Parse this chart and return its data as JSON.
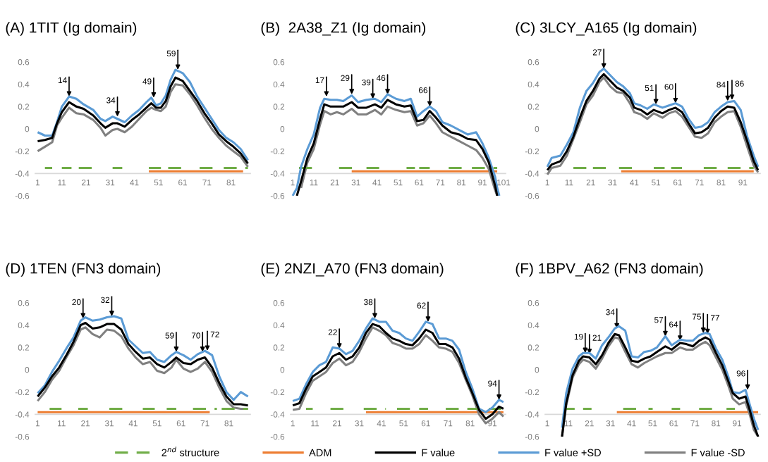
{
  "chart_data": [
    {
      "type": "line",
      "title": "(A) 1TIT (Ig domain)",
      "xlim": [
        0,
        89
      ],
      "xticks": [
        1,
        11,
        21,
        31,
        41,
        51,
        61,
        71,
        81
      ],
      "ylim": [
        -0.6,
        0.6
      ],
      "yticks": [
        -0.6,
        -0.4,
        -0.2,
        0,
        0.2,
        0.4,
        0.6
      ],
      "grid": false,
      "x": [
        1,
        4,
        7,
        9,
        11,
        14,
        17,
        20,
        24,
        27,
        29,
        32,
        34,
        37,
        40,
        43,
        46,
        48,
        50,
        52,
        54,
        56,
        58,
        61,
        64,
        67,
        70,
        73,
        76,
        79,
        82,
        85,
        88
      ],
      "series": [
        {
          "color": "#70ad47",
          "line_style": "dashed",
          "x": [
            4,
            7,
            9,
            11,
            15,
            16,
            18,
            25,
            28,
            32,
            36,
            41,
            47,
            52,
            53,
            55,
            61,
            64,
            68,
            75,
            76,
            78,
            88
          ],
          "values": [
            -0.35,
            -0.35,
            null,
            -0.35,
            -0.35,
            null,
            -0.35,
            -0.35,
            null,
            -0.35,
            -0.35,
            null,
            -0.35,
            -0.35,
            null,
            -0.35,
            -0.35,
            null,
            -0.35,
            -0.35,
            null,
            -0.35,
            -0.35
          ]
        },
        {
          "color": "#ed7d31",
          "x": [
            47,
            86
          ],
          "values": [
            -0.38,
            -0.38
          ]
        },
        {
          "color": "#000000",
          "values": [
            -0.11,
            -0.1,
            -0.08,
            0.05,
            0.15,
            0.24,
            0.2,
            0.18,
            0.12,
            0.05,
            0.01,
            0.05,
            0.05,
            0.02,
            0.08,
            0.13,
            0.19,
            0.23,
            0.19,
            0.19,
            0.25,
            0.38,
            0.46,
            0.43,
            0.34,
            0.25,
            0.14,
            0.05,
            -0.05,
            -0.11,
            -0.16,
            -0.22,
            -0.31
          ]
        },
        {
          "color": "#5b9bd5",
          "values": [
            -0.03,
            -0.06,
            -0.06,
            0.06,
            0.2,
            0.29,
            0.27,
            0.22,
            0.17,
            0.09,
            0.07,
            0.11,
            0.09,
            0.06,
            0.12,
            0.17,
            0.24,
            0.28,
            0.21,
            0.23,
            0.3,
            0.44,
            0.53,
            0.5,
            0.42,
            0.29,
            0.19,
            0.09,
            -0.01,
            -0.08,
            -0.12,
            -0.18,
            -0.28
          ]
        },
        {
          "color": "#808080",
          "values": [
            -0.2,
            -0.16,
            -0.12,
            0.03,
            0.1,
            0.19,
            0.14,
            0.13,
            0.08,
            0.01,
            -0.06,
            -0.01,
            0.0,
            -0.03,
            0.02,
            0.09,
            0.16,
            0.19,
            0.17,
            0.16,
            0.2,
            0.33,
            0.4,
            0.39,
            0.31,
            0.21,
            0.1,
            0.0,
            -0.08,
            -0.15,
            -0.2,
            -0.25,
            -0.34
          ]
        }
      ],
      "annotations": [
        {
          "text": "14",
          "x": 14,
          "y": 0.29
        },
        {
          "text": "34",
          "x": 34,
          "y": 0.11
        },
        {
          "text": "49",
          "x": 49,
          "y": 0.28
        },
        {
          "text": "59",
          "x": 59,
          "y": 0.53
        }
      ]
    },
    {
      "type": "line",
      "title": "(B)  2A38_Z1 (Ig domain)",
      "xlim": [
        0,
        102
      ],
      "xticks": [
        1,
        11,
        21,
        31,
        41,
        51,
        61,
        71,
        81,
        91,
        101
      ],
      "ylim": [
        -0.6,
        0.6
      ],
      "yticks": [
        -0.6,
        -0.4,
        -0.2,
        0,
        0.2,
        0.4,
        0.6
      ],
      "grid": false,
      "x": [
        1,
        3,
        5,
        8,
        11,
        14,
        16,
        19,
        22,
        25,
        29,
        32,
        36,
        40,
        43,
        46,
        50,
        54,
        57,
        60,
        63,
        66,
        69,
        72,
        76,
        80,
        84,
        88,
        91,
        94,
        97,
        98,
        99
      ],
      "series": [
        {
          "color": "#70ad47",
          "line_style": "dashed",
          "x": [
            4,
            11,
            17,
            23,
            33,
            34,
            36,
            42,
            48,
            55,
            59,
            60,
            61,
            66,
            70,
            75,
            83,
            84,
            86,
            98
          ],
          "values": [
            -0.35,
            -0.35,
            null,
            -0.35,
            -0.35,
            null,
            -0.35,
            -0.35,
            null,
            -0.35,
            -0.35,
            null,
            -0.35,
            -0.35,
            null,
            -0.35,
            -0.35,
            null,
            -0.35,
            -0.35
          ]
        },
        {
          "color": "#ed7d31",
          "x": [
            29,
            98
          ],
          "values": [
            -0.38,
            -0.38
          ]
        },
        {
          "color": "#000000",
          "values": [
            null,
            -0.6,
            -0.47,
            -0.26,
            -0.13,
            0.09,
            0.22,
            0.2,
            0.2,
            0.2,
            0.24,
            0.19,
            0.19,
            0.22,
            0.19,
            0.26,
            0.22,
            0.2,
            0.21,
            0.07,
            0.08,
            0.16,
            0.1,
            0.03,
            -0.03,
            -0.05,
            -0.09,
            -0.1,
            -0.18,
            -0.3,
            -0.51,
            -0.6,
            null
          ]
        },
        {
          "color": "#5b9bd5",
          "values": [
            -0.6,
            -0.53,
            -0.34,
            -0.18,
            -0.05,
            0.19,
            0.27,
            0.26,
            0.26,
            0.25,
            0.3,
            0.24,
            0.26,
            0.27,
            0.24,
            0.31,
            0.27,
            0.25,
            0.27,
            0.11,
            0.16,
            0.2,
            0.16,
            0.06,
            0.03,
            -0.01,
            -0.05,
            -0.03,
            -0.13,
            -0.26,
            -0.43,
            -0.53,
            -0.6
          ]
        },
        {
          "color": "#808080",
          "values": [
            null,
            null,
            -0.53,
            -0.3,
            -0.18,
            0.04,
            0.16,
            0.13,
            0.15,
            0.13,
            0.18,
            0.13,
            0.13,
            0.17,
            0.13,
            0.2,
            0.17,
            0.15,
            0.16,
            0.03,
            0.05,
            0.12,
            0.05,
            -0.03,
            -0.07,
            -0.11,
            -0.15,
            -0.19,
            -0.26,
            -0.36,
            -0.55,
            -0.6,
            null
          ]
        }
      ],
      "annotations": [
        {
          "text": "17",
          "x": 17,
          "y": 0.29
        },
        {
          "text": "29",
          "x": 29,
          "y": 0.31
        },
        {
          "text": "39",
          "x": 39,
          "y": 0.27
        },
        {
          "text": "46",
          "x": 46,
          "y": 0.31
        },
        {
          "text": "66",
          "x": 66,
          "y": 0.2
        }
      ]
    },
    {
      "type": "line",
      "title": "(C) 3LCY_A165 (Ig domain)",
      "xlim": [
        0,
        99
      ],
      "xticks": [
        1,
        11,
        21,
        31,
        41,
        51,
        61,
        71,
        81,
        91
      ],
      "ylim": [
        -0.6,
        0.6
      ],
      "yticks": [
        -0.6,
        -0.4,
        -0.2,
        0,
        0.2,
        0.4,
        0.6
      ],
      "grid": false,
      "x": [
        1,
        3,
        7,
        10,
        13,
        16,
        19,
        22,
        25,
        27,
        30,
        33,
        36,
        39,
        41,
        44,
        47,
        50,
        54,
        57,
        60,
        63,
        66,
        69,
        72,
        75,
        78,
        81,
        84,
        87,
        90,
        93,
        96,
        98
      ],
      "series": [
        {
          "color": "#70ad47",
          "line_style": "dashed",
          "x": [
            13,
            20,
            21,
            22,
            29,
            31,
            34,
            40,
            45,
            50,
            55,
            56,
            58,
            63,
            68,
            73,
            80,
            82,
            84,
            96
          ],
          "values": [
            -0.35,
            -0.35,
            null,
            -0.35,
            -0.35,
            null,
            -0.35,
            -0.35,
            null,
            -0.35,
            -0.35,
            null,
            -0.35,
            -0.35,
            null,
            -0.35,
            -0.35,
            null,
            -0.35,
            -0.35
          ]
        },
        {
          "color": "#ed7d31",
          "x": [
            35,
            96
          ],
          "values": [
            -0.38,
            -0.38
          ]
        },
        {
          "color": "#000000",
          "values": [
            -0.37,
            -0.32,
            -0.29,
            -0.2,
            -0.07,
            0.1,
            0.25,
            0.34,
            0.45,
            0.49,
            0.43,
            0.37,
            0.34,
            0.28,
            0.19,
            0.17,
            0.13,
            0.17,
            0.14,
            0.17,
            0.19,
            0.15,
            0.05,
            -0.04,
            -0.03,
            0.01,
            0.1,
            0.16,
            0.2,
            0.19,
            0.06,
            -0.11,
            -0.29,
            -0.37
          ]
        },
        {
          "color": "#5b9bd5",
          "values": [
            -0.34,
            -0.26,
            -0.24,
            -0.14,
            -0.03,
            0.19,
            0.34,
            0.41,
            0.51,
            0.54,
            0.48,
            0.42,
            0.38,
            0.32,
            0.23,
            0.21,
            0.18,
            0.22,
            0.19,
            0.21,
            0.23,
            0.2,
            0.09,
            0.01,
            0.02,
            0.06,
            0.15,
            0.2,
            0.24,
            0.25,
            0.17,
            -0.07,
            -0.24,
            -0.34
          ]
        },
        {
          "color": "#808080",
          "values": [
            -0.41,
            -0.35,
            -0.33,
            -0.24,
            -0.09,
            0.06,
            0.22,
            0.3,
            0.42,
            0.46,
            0.38,
            0.33,
            0.32,
            0.23,
            0.15,
            0.13,
            0.09,
            0.14,
            0.1,
            0.14,
            0.16,
            0.11,
            0.02,
            -0.07,
            -0.08,
            -0.04,
            0.06,
            0.11,
            0.15,
            0.16,
            0.02,
            -0.16,
            -0.33,
            -0.39
          ]
        }
      ],
      "annotations": [
        {
          "text": "27",
          "x": 27,
          "y": 0.54
        },
        {
          "text": "51",
          "x": 51,
          "y": 0.22
        },
        {
          "text": "60",
          "x": 60,
          "y": 0.23
        },
        {
          "text": "84",
          "x": 84,
          "y": 0.25
        },
        {
          "text": "86",
          "x": 86,
          "y": 0.26
        }
      ]
    },
    {
      "type": "line",
      "title": "(D) 1TEN (FN3 domain)",
      "xlim": [
        0,
        90
      ],
      "xticks": [
        1,
        11,
        21,
        31,
        41,
        51,
        61,
        71,
        81
      ],
      "ylim": [
        -0.6,
        0.6
      ],
      "yticks": [
        -0.6,
        -0.4,
        -0.2,
        0,
        0.2,
        0.4,
        0.6
      ],
      "grid": false,
      "x": [
        1,
        4,
        7,
        10,
        13,
        16,
        19,
        21,
        24,
        27,
        30,
        33,
        36,
        39,
        42,
        45,
        48,
        51,
        54,
        57,
        59,
        62,
        65,
        68,
        71,
        74,
        77,
        80,
        83,
        86,
        89
      ],
      "series": [
        {
          "color": "#70ad47",
          "line_style": "dashed",
          "x": [
            6,
            11,
            14,
            18,
            22,
            26,
            31,
            39,
            42,
            45,
            50,
            52,
            55,
            59,
            62,
            66,
            76,
            77,
            78,
            89
          ],
          "values": [
            -0.35,
            -0.35,
            null,
            -0.35,
            -0.35,
            null,
            -0.35,
            -0.35,
            null,
            -0.35,
            -0.35,
            null,
            -0.35,
            -0.35,
            null,
            -0.35,
            -0.35,
            null,
            -0.35,
            -0.35
          ]
        },
        {
          "color": "#ed7d31",
          "x": [
            1,
            73
          ],
          "values": [
            -0.38,
            -0.38
          ]
        },
        {
          "color": "#000000",
          "values": [
            -0.24,
            -0.16,
            -0.06,
            0.02,
            0.13,
            0.25,
            0.4,
            0.42,
            0.37,
            0.38,
            0.41,
            0.41,
            0.36,
            0.23,
            0.16,
            0.1,
            0.11,
            0.05,
            0.02,
            0.07,
            0.11,
            0.06,
            0.05,
            0.09,
            0.11,
            0.02,
            -0.12,
            -0.24,
            -0.31,
            -0.31,
            -0.32
          ]
        },
        {
          "color": "#5b9bd5",
          "values": [
            -0.21,
            -0.14,
            -0.02,
            0.08,
            0.19,
            0.29,
            0.44,
            0.47,
            0.44,
            0.45,
            0.47,
            0.48,
            0.46,
            0.27,
            0.21,
            0.15,
            0.16,
            0.09,
            0.07,
            0.13,
            0.16,
            0.13,
            0.09,
            0.14,
            0.17,
            0.13,
            -0.06,
            -0.2,
            -0.27,
            -0.2,
            -0.24
          ]
        },
        {
          "color": "#808080",
          "values": [
            -0.28,
            -0.2,
            -0.09,
            -0.01,
            0.11,
            0.22,
            0.36,
            0.38,
            0.32,
            0.29,
            0.36,
            0.35,
            0.3,
            0.19,
            0.11,
            0.05,
            0.07,
            -0.01,
            -0.03,
            0.02,
            0.09,
            0.01,
            -0.02,
            0.01,
            0.07,
            -0.02,
            -0.16,
            -0.28,
            -0.34,
            -0.35,
            -0.35
          ]
        }
      ],
      "annotations": [
        {
          "text": "20",
          "x": 20,
          "y": 0.46
        },
        {
          "text": "32",
          "x": 32,
          "y": 0.48
        },
        {
          "text": "59",
          "x": 59,
          "y": 0.16
        },
        {
          "text": "70",
          "x": 70,
          "y": 0.16
        },
        {
          "text": "72",
          "x": 72,
          "y": 0.17
        }
      ]
    },
    {
      "type": "line",
      "title": "(E) 2NZI_A70 (FN3 domain)",
      "xlim": [
        0,
        97
      ],
      "xticks": [
        1,
        11,
        21,
        31,
        41,
        51,
        61,
        71,
        81,
        91
      ],
      "ylim": [
        -0.6,
        0.6
      ],
      "yticks": [
        -0.6,
        -0.4,
        -0.2,
        0,
        0.2,
        0.4,
        0.6
      ],
      "grid": false,
      "x": [
        1,
        4,
        7,
        10,
        13,
        16,
        19,
        22,
        25,
        28,
        31,
        34,
        37,
        40,
        43,
        46,
        49,
        52,
        55,
        58,
        61,
        64,
        67,
        70,
        73,
        76,
        79,
        82,
        85,
        88,
        91,
        94,
        96
      ],
      "series": [
        {
          "color": "#70ad47",
          "line_style": "dashed",
          "x": [
            7,
            10,
            14,
            18,
            24,
            28,
            33,
            43,
            45,
            48,
            54,
            56,
            58,
            62,
            66,
            70,
            95
          ],
          "values": [
            -0.35,
            -0.35,
            null,
            -0.35,
            -0.35,
            null,
            -0.35,
            -0.35,
            null,
            -0.35,
            -0.35,
            null,
            -0.35,
            -0.35,
            null,
            -0.35,
            -0.35
          ]
        },
        {
          "color": "#ed7d31",
          "x": [
            34,
            96
          ],
          "values": [
            -0.38,
            -0.38
          ]
        },
        {
          "color": "#000000",
          "values": [
            -0.32,
            -0.3,
            -0.17,
            -0.06,
            -0.02,
            0.02,
            0.12,
            0.15,
            0.09,
            0.12,
            0.2,
            0.33,
            0.41,
            0.39,
            0.33,
            0.28,
            0.26,
            0.23,
            0.22,
            0.28,
            0.36,
            0.33,
            0.23,
            0.23,
            0.2,
            0.1,
            -0.07,
            -0.21,
            -0.36,
            -0.44,
            -0.4,
            -0.33,
            -0.35
          ]
        },
        {
          "color": "#5b9bd5",
          "values": [
            -0.28,
            -0.26,
            -0.13,
            -0.02,
            0.04,
            0.07,
            0.2,
            0.19,
            0.14,
            0.17,
            0.26,
            0.37,
            0.46,
            0.43,
            0.43,
            0.35,
            0.33,
            0.28,
            0.26,
            0.34,
            0.43,
            0.41,
            0.28,
            0.28,
            0.26,
            0.18,
            -0.02,
            -0.17,
            -0.35,
            -0.38,
            -0.34,
            -0.27,
            -0.29
          ]
        },
        {
          "color": "#808080",
          "values": [
            -0.36,
            -0.35,
            -0.21,
            -0.1,
            -0.06,
            -0.02,
            0.06,
            0.1,
            0.04,
            0.07,
            0.16,
            0.28,
            0.38,
            0.35,
            0.31,
            0.24,
            0.22,
            0.19,
            0.19,
            0.23,
            0.31,
            0.26,
            0.2,
            0.19,
            0.16,
            0.06,
            -0.09,
            -0.23,
            -0.4,
            -0.48,
            -0.44,
            -0.38,
            -0.42
          ]
        }
      ],
      "annotations": [
        {
          "text": "22",
          "x": 22,
          "y": 0.19
        },
        {
          "text": "38",
          "x": 38,
          "y": 0.46
        },
        {
          "text": "62",
          "x": 62,
          "y": 0.43
        },
        {
          "text": "94",
          "x": 94,
          "y": -0.27
        }
      ]
    },
    {
      "type": "line",
      "title": "(F) 1BPV_A62 (FN3 domain)",
      "xlim": [
        0,
        102
      ],
      "xticks": [
        1,
        11,
        21,
        31,
        41,
        51,
        61,
        71,
        81,
        91
      ],
      "ylim": [
        -0.6,
        0.6
      ],
      "yticks": [
        -0.6,
        -0.4,
        -0.2,
        0,
        0.2,
        0.4,
        0.6
      ],
      "grid": false,
      "legend": "bottom",
      "x": [
        8,
        10,
        13,
        16,
        18,
        21,
        24,
        27,
        30,
        33,
        35,
        38,
        41,
        44,
        47,
        50,
        53,
        57,
        60,
        64,
        67,
        70,
        73,
        76,
        78,
        81,
        84,
        87,
        89,
        92,
        95,
        97,
        99,
        101
      ],
      "series": [
        {
          "name": "2$^{nd}$ structure",
          "color": "#70ad47",
          "line_style": "dashed",
          "x": [
            10,
            14,
            16,
            18,
            22,
            30,
            37,
            44,
            46,
            49,
            51,
            55,
            60,
            64,
            68,
            73,
            82,
            84,
            86,
            90
          ],
          "values": [
            -0.35,
            -0.35,
            null,
            -0.35,
            -0.35,
            null,
            -0.35,
            -0.35,
            null,
            -0.35,
            -0.35,
            null,
            -0.35,
            -0.35,
            null,
            -0.35,
            -0.35,
            null,
            -0.35,
            -0.35
          ]
        },
        {
          "name": "ADM",
          "color": "#ed7d31",
          "x": [
            34,
            101
          ],
          "values": [
            -0.38,
            -0.38
          ]
        },
        {
          "name": "F value",
          "color": "#000000",
          "values": [
            -0.6,
            -0.3,
            -0.05,
            0.08,
            0.12,
            0.11,
            0.05,
            0.13,
            0.24,
            0.32,
            0.31,
            0.2,
            0.08,
            0.07,
            0.1,
            0.12,
            0.16,
            0.21,
            0.18,
            0.24,
            0.23,
            0.21,
            0.26,
            0.29,
            0.27,
            0.15,
            0.04,
            -0.11,
            -0.21,
            -0.26,
            -0.24,
            -0.36,
            -0.5,
            -0.6
          ]
        },
        {
          "name": "F value +SD",
          "color": "#5b9bd5",
          "values": [
            -0.52,
            -0.21,
            0.01,
            0.12,
            0.15,
            0.15,
            0.1,
            0.22,
            0.29,
            0.37,
            0.39,
            0.35,
            0.12,
            0.11,
            0.16,
            0.17,
            0.2,
            0.3,
            0.22,
            0.27,
            0.26,
            0.26,
            0.31,
            0.33,
            0.32,
            0.19,
            0.09,
            -0.07,
            -0.2,
            -0.21,
            -0.18,
            -0.31,
            -0.44,
            -0.54
          ]
        },
        {
          "name": "F value -SD",
          "color": "#808080",
          "values": [
            -0.6,
            -0.32,
            -0.07,
            0.05,
            0.09,
            0.07,
            0.01,
            0.1,
            0.21,
            0.29,
            0.28,
            0.16,
            0.05,
            0.02,
            0.06,
            0.09,
            0.12,
            0.15,
            0.15,
            0.2,
            0.18,
            0.18,
            0.22,
            0.25,
            0.22,
            0.11,
            0.0,
            -0.15,
            -0.26,
            -0.31,
            -0.29,
            -0.4,
            -0.54,
            -0.6
          ]
        }
      ],
      "annotations": [
        {
          "text": "19",
          "x": 19,
          "y": 0.15
        },
        {
          "text": "21",
          "x": 21,
          "y": 0.14
        },
        {
          "text": "34",
          "x": 34,
          "y": 0.37
        },
        {
          "text": "57",
          "x": 57,
          "y": 0.3
        },
        {
          "text": "64",
          "x": 64,
          "y": 0.26
        },
        {
          "text": "75",
          "x": 75,
          "y": 0.33
        },
        {
          "text": "77",
          "x": 77,
          "y": 0.32
        },
        {
          "text": "96",
          "x": 96,
          "y": -0.18
        }
      ]
    }
  ]
}
